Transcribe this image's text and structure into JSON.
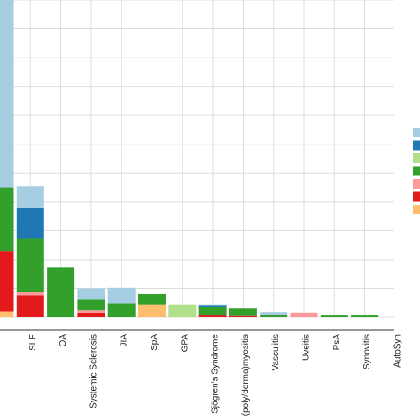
{
  "chart_data": {
    "type": "bar",
    "stacked": true,
    "orientation": "vertical",
    "grid": true,
    "legend_position": "right (partially cropped, labels not visible)",
    "ylim": [
      0,
      550
    ],
    "categories": [
      "",
      "SLE",
      "OA",
      "Systemic Sclerosis",
      "JIA",
      "SpA",
      "GPA",
      "Sjögren's Syndrome",
      "(poly/derma)myositis",
      "Vasculitis",
      "Uveitis",
      "PsA",
      "Synovitis",
      "AutoSyn"
    ],
    "series": [
      {
        "color": "#fdbf6f",
        "values": [
          10,
          0,
          0,
          0,
          0,
          22,
          0,
          0,
          0,
          0,
          0,
          0,
          0,
          0
        ]
      },
      {
        "color": "#e31a1c",
        "values": [
          105,
          38,
          0,
          8,
          0,
          0,
          0,
          3,
          2,
          0,
          0,
          0,
          0,
          0
        ]
      },
      {
        "color": "#fb9a99",
        "values": [
          0,
          6,
          0,
          4,
          0,
          0,
          0,
          0,
          0,
          0,
          8,
          0,
          0,
          0
        ]
      },
      {
        "color": "#33a02c",
        "values": [
          110,
          92,
          87,
          18,
          24,
          18,
          0,
          14,
          13,
          3,
          0,
          3,
          3,
          0
        ]
      },
      {
        "color": "#b2df8a",
        "values": [
          0,
          0,
          0,
          0,
          0,
          0,
          22,
          0,
          0,
          0,
          0,
          0,
          0,
          0
        ]
      },
      {
        "color": "#1f78b4",
        "values": [
          0,
          53,
          0,
          0,
          0,
          0,
          0,
          4,
          0,
          2,
          0,
          0,
          0,
          0
        ]
      },
      {
        "color": "#a6cee3",
        "values": [
          325,
          38,
          0,
          20,
          27,
          0,
          0,
          1,
          0,
          4,
          0,
          0,
          0,
          0
        ]
      }
    ]
  }
}
